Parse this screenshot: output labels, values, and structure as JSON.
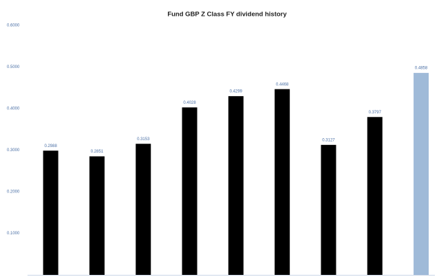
{
  "chart_data": {
    "type": "bar",
    "title": "Fund GBP Z Class FY dividend history",
    "values": [
      0.2988,
      0.2851,
      0.3153,
      0.4028,
      0.4299,
      0.4468,
      0.3127,
      0.3797,
      0.4858
    ],
    "colors": [
      "#000000",
      "#000000",
      "#000000",
      "#000000",
      "#000000",
      "#000000",
      "#000000",
      "#000000",
      "#9fbad8"
    ],
    "ylim": [
      0,
      0.6
    ],
    "yticks": [
      {
        "value": 0.1,
        "label": "0.1000"
      },
      {
        "value": 0.2,
        "label": "0.2000"
      },
      {
        "value": 0.3,
        "label": "0.3000"
      },
      {
        "value": 0.4,
        "label": "0.4000"
      },
      {
        "value": 0.5,
        "label": "0.5000"
      },
      {
        "value": 0.6,
        "label": "0.6000"
      }
    ],
    "grid": false
  }
}
